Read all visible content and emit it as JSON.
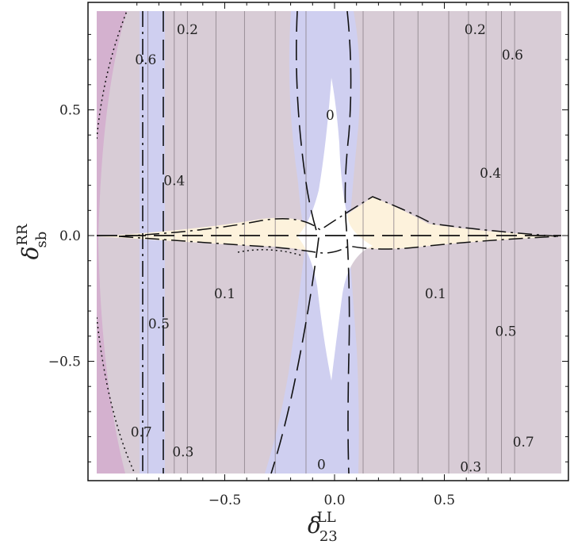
{
  "chart_data": {
    "type": "contour",
    "xlabel": "δ",
    "xlabel_sub": "23",
    "xlabel_sup": "LL",
    "ylabel": "δ",
    "ylabel_sub": "sb",
    "ylabel_sup": "RR",
    "xlim": [
      -0.92,
      0.86
    ],
    "ylim": [
      -0.92,
      0.86
    ],
    "x_ticks": [
      {
        "value": -0.5,
        "label": "−0.5"
      },
      {
        "value": 0.0,
        "label": "0.0"
      },
      {
        "value": 0.5,
        "label": "0.5"
      }
    ],
    "y_ticks": [
      {
        "value": 0.5,
        "label": "0.5"
      },
      {
        "value": 0.0,
        "label": "0.0"
      },
      {
        "value": -0.5,
        "label": "−0.5"
      }
    ],
    "vertical_contour_levels_x": [
      -0.85,
      -0.73,
      -0.67,
      -0.54,
      -0.41,
      -0.27,
      -0.13,
      0.13,
      0.27,
      0.38,
      0.52,
      0.61,
      0.69,
      0.76,
      0.82
    ],
    "contour_labels": [
      {
        "text": "0.2",
        "x": -0.67,
        "y": 0.82
      },
      {
        "text": "0.2",
        "x": 0.64,
        "y": 0.82
      },
      {
        "text": "0.6",
        "x": -0.86,
        "y": 0.7
      },
      {
        "text": "0.6",
        "x": 0.81,
        "y": 0.72
      },
      {
        "text": "0",
        "x": -0.02,
        "y": 0.48
      },
      {
        "text": "0.4",
        "x": -0.73,
        "y": 0.22
      },
      {
        "text": "0.4",
        "x": 0.71,
        "y": 0.25
      },
      {
        "text": "0.1",
        "x": -0.5,
        "y": -0.23
      },
      {
        "text": "0.1",
        "x": 0.46,
        "y": -0.23
      },
      {
        "text": "0.5",
        "x": -0.8,
        "y": -0.35
      },
      {
        "text": "0.5",
        "x": 0.78,
        "y": -0.38
      },
      {
        "text": "0.7",
        "x": -0.88,
        "y": -0.78
      },
      {
        "text": "0.7",
        "x": 0.86,
        "y": -0.82
      },
      {
        "text": "0.3",
        "x": -0.69,
        "y": -0.86
      },
      {
        "text": "0.3",
        "x": 0.62,
        "y": -0.92
      },
      {
        "text": "0",
        "x": -0.06,
        "y": -0.91
      }
    ],
    "colors": {
      "background_region": "#d8ccd6",
      "blue_region": "#cfcff0",
      "magenta_region": "#d4b1cf",
      "allowed_region": "#fdf2dc",
      "white_region": "#ffffff",
      "contour_line": "#8a8088",
      "boundary_line": "#111111"
    },
    "grid": false
  }
}
